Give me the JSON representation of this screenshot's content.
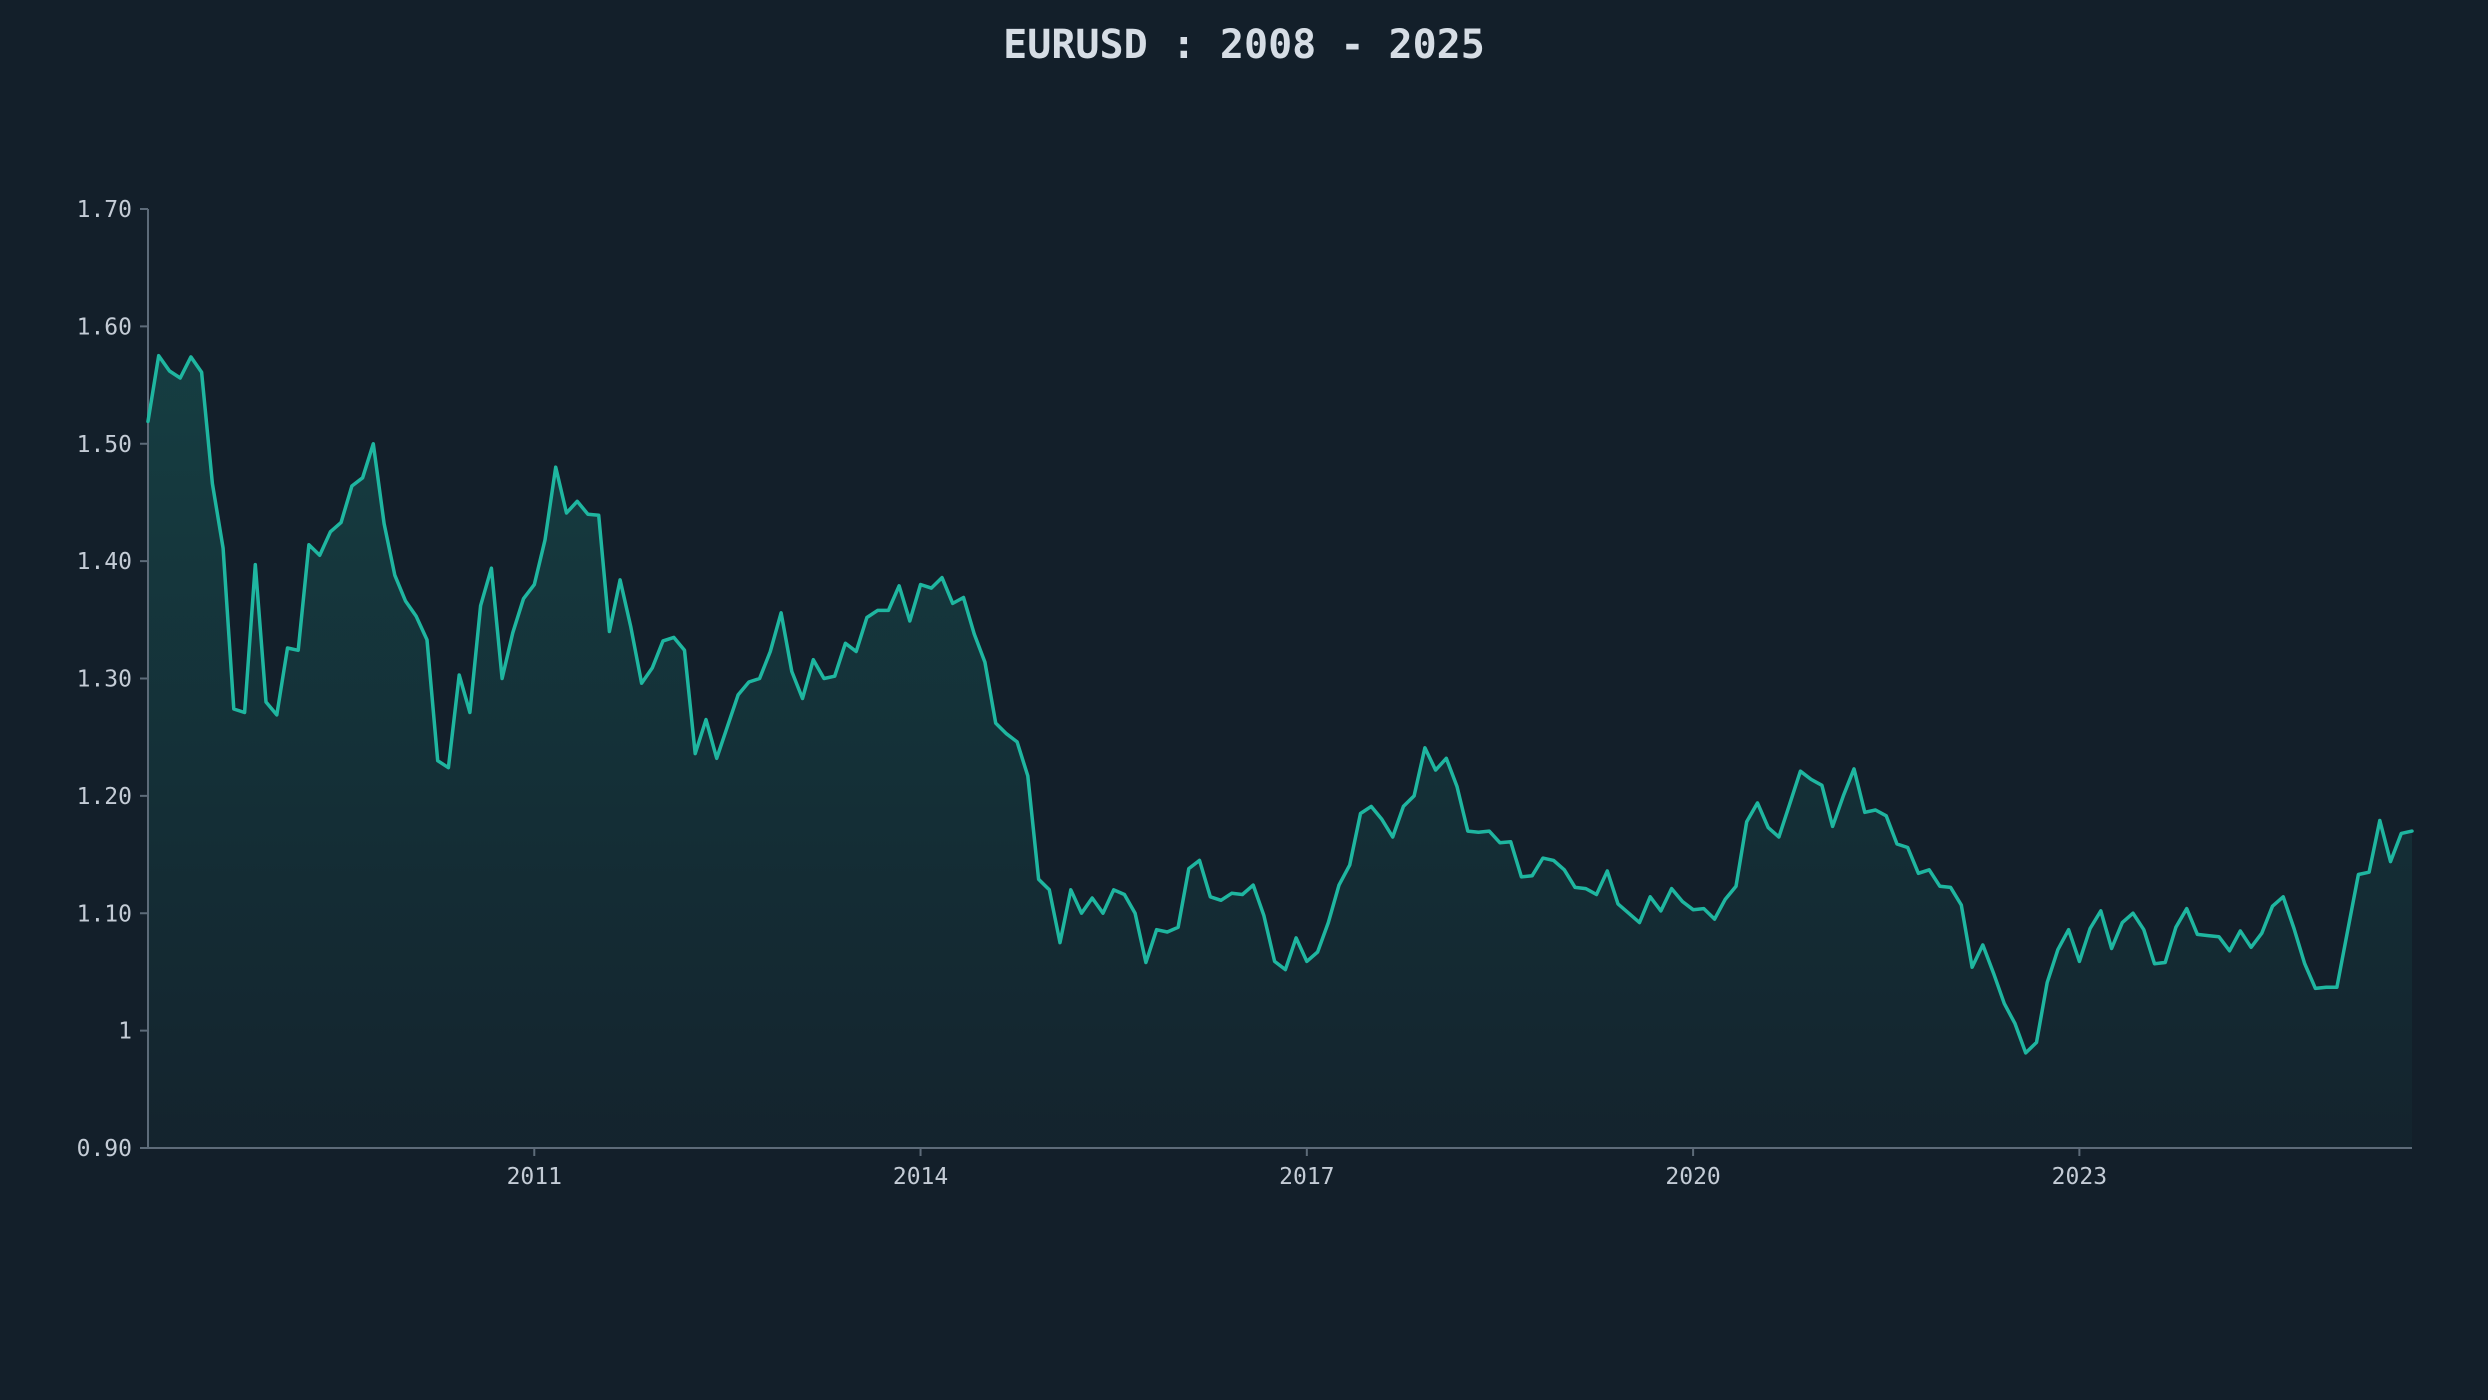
{
  "chart_data": {
    "type": "area",
    "title": "EURUSD : 2008 - 2025",
    "xlabel": "",
    "ylabel": "",
    "x_range": [
      "2008-01",
      "2025-08"
    ],
    "ylim": [
      0.9,
      1.7
    ],
    "y_ticks": [
      {
        "value": 0.9,
        "label": "0.90"
      },
      {
        "value": 1.0,
        "label": "1"
      },
      {
        "value": 1.1,
        "label": "1.10"
      },
      {
        "value": 1.2,
        "label": "1.20"
      },
      {
        "value": 1.3,
        "label": "1.30"
      },
      {
        "value": 1.4,
        "label": "1.40"
      },
      {
        "value": 1.5,
        "label": "1.50"
      },
      {
        "value": 1.6,
        "label": "1.60"
      },
      {
        "value": 1.7,
        "label": "1.70"
      }
    ],
    "x_ticks": [
      {
        "value": "2011-01",
        "label": "2011"
      },
      {
        "value": "2014-01",
        "label": "2014"
      },
      {
        "value": "2017-01",
        "label": "2017"
      },
      {
        "value": "2020-01",
        "label": "2020"
      },
      {
        "value": "2023-01",
        "label": "2023"
      }
    ],
    "grid": false,
    "colors": {
      "line": "#1fb6a0",
      "background": "#131f2a",
      "axis": "#5d6b79",
      "text": "#c4ccd6"
    },
    "series": [
      {
        "x": [
          "2008-01",
          "2008-02",
          "2008-03",
          "2008-04",
          "2008-05",
          "2008-06",
          "2008-07",
          "2008-08",
          "2008-09",
          "2008-10",
          "2008-11",
          "2008-12",
          "2009-01",
          "2009-02",
          "2009-03",
          "2009-04",
          "2009-05",
          "2009-06",
          "2009-07",
          "2009-08",
          "2009-09",
          "2009-10",
          "2009-11",
          "2009-12",
          "2010-01",
          "2010-02",
          "2010-03",
          "2010-04",
          "2010-05",
          "2010-06",
          "2010-07",
          "2010-08",
          "2010-09",
          "2010-10",
          "2010-11",
          "2010-12",
          "2011-01",
          "2011-02",
          "2011-03",
          "2011-04",
          "2011-05",
          "2011-06",
          "2011-07",
          "2011-08",
          "2011-09",
          "2011-10",
          "2011-11",
          "2011-12",
          "2012-01",
          "2012-02",
          "2012-03",
          "2012-04",
          "2012-05",
          "2012-06",
          "2012-07",
          "2012-08",
          "2012-09",
          "2012-10",
          "2012-11",
          "2012-12",
          "2013-01",
          "2013-02",
          "2013-03",
          "2013-04",
          "2013-05",
          "2013-06",
          "2013-07",
          "2013-08",
          "2013-09",
          "2013-10",
          "2013-11",
          "2013-12",
          "2014-01",
          "2014-02",
          "2014-03",
          "2014-04",
          "2014-05",
          "2014-06",
          "2014-07",
          "2014-08",
          "2014-09",
          "2014-10",
          "2014-11",
          "2014-12",
          "2015-01",
          "2015-02",
          "2015-03",
          "2015-04",
          "2015-05",
          "2015-06",
          "2015-07",
          "2015-08",
          "2015-09",
          "2015-10",
          "2015-11",
          "2015-12",
          "2016-01",
          "2016-02",
          "2016-03",
          "2016-04",
          "2016-05",
          "2016-06",
          "2016-07",
          "2016-08",
          "2016-09",
          "2016-10",
          "2016-11",
          "2016-12",
          "2017-01",
          "2017-02",
          "2017-03",
          "2017-04",
          "2017-05",
          "2017-06",
          "2017-07",
          "2017-08",
          "2017-09",
          "2017-10",
          "2017-11",
          "2017-12",
          "2018-01",
          "2018-02",
          "2018-03",
          "2018-04",
          "2018-05",
          "2018-06",
          "2018-07",
          "2018-08",
          "2018-09",
          "2018-10",
          "2018-11",
          "2018-12",
          "2019-01",
          "2019-02",
          "2019-03",
          "2019-04",
          "2019-05",
          "2019-06",
          "2019-07",
          "2019-08",
          "2019-09",
          "2019-10",
          "2019-11",
          "2019-12",
          "2020-01",
          "2020-02",
          "2020-03",
          "2020-04",
          "2020-05",
          "2020-06",
          "2020-07",
          "2020-08",
          "2020-09",
          "2020-10",
          "2020-11",
          "2020-12",
          "2021-01",
          "2021-02",
          "2021-03",
          "2021-04",
          "2021-05",
          "2021-06",
          "2021-07",
          "2021-08",
          "2021-09",
          "2021-10",
          "2021-11",
          "2021-12",
          "2022-01",
          "2022-02",
          "2022-03",
          "2022-04",
          "2022-05",
          "2022-06",
          "2022-07",
          "2022-08",
          "2022-09",
          "2022-10",
          "2022-11",
          "2022-12",
          "2023-01",
          "2023-02",
          "2023-03",
          "2023-04",
          "2023-05",
          "2023-06",
          "2023-07",
          "2023-08",
          "2023-09",
          "2023-10",
          "2023-11",
          "2023-12",
          "2024-01",
          "2024-02",
          "2024-03",
          "2024-04",
          "2024-05",
          "2024-06",
          "2024-07",
          "2024-08",
          "2024-09",
          "2024-10",
          "2024-11",
          "2024-12",
          "2025-01",
          "2025-02",
          "2025-03",
          "2025-04",
          "2025-05",
          "2025-06",
          "2025-07",
          "2025-08"
        ],
        "values": [
          1.519,
          1.575,
          1.562,
          1.556,
          1.574,
          1.561,
          1.466,
          1.411,
          1.274,
          1.271,
          1.397,
          1.28,
          1.269,
          1.326,
          1.324,
          1.414,
          1.405,
          1.425,
          1.433,
          1.464,
          1.471,
          1.5,
          1.432,
          1.388,
          1.366,
          1.353,
          1.333,
          1.23,
          1.224,
          1.303,
          1.271,
          1.362,
          1.394,
          1.3,
          1.339,
          1.368,
          1.38,
          1.418,
          1.48,
          1.441,
          1.451,
          1.44,
          1.439,
          1.34,
          1.384,
          1.344,
          1.296,
          1.309,
          1.332,
          1.335,
          1.324,
          1.236,
          1.265,
          1.232,
          1.259,
          1.286,
          1.297,
          1.3,
          1.323,
          1.356,
          1.306,
          1.283,
          1.316,
          1.3,
          1.302,
          1.33,
          1.323,
          1.352,
          1.358,
          1.358,
          1.379,
          1.349,
          1.38,
          1.377,
          1.386,
          1.364,
          1.369,
          1.338,
          1.314,
          1.262,
          1.253,
          1.246,
          1.217,
          1.129,
          1.12,
          1.075,
          1.12,
          1.1,
          1.113,
          1.1,
          1.12,
          1.116,
          1.1,
          1.058,
          1.086,
          1.084,
          1.088,
          1.138,
          1.145,
          1.114,
          1.111,
          1.117,
          1.116,
          1.124,
          1.098,
          1.059,
          1.052,
          1.079,
          1.059,
          1.067,
          1.092,
          1.124,
          1.141,
          1.185,
          1.191,
          1.18,
          1.165,
          1.191,
          1.2,
          1.241,
          1.222,
          1.232,
          1.208,
          1.17,
          1.169,
          1.17,
          1.16,
          1.161,
          1.131,
          1.132,
          1.147,
          1.145,
          1.137,
          1.122,
          1.121,
          1.116,
          1.136,
          1.108,
          1.1,
          1.092,
          1.114,
          1.102,
          1.121,
          1.11,
          1.103,
          1.104,
          1.095,
          1.112,
          1.123,
          1.178,
          1.194,
          1.173,
          1.165,
          1.193,
          1.221,
          1.214,
          1.209,
          1.174,
          1.2,
          1.223,
          1.186,
          1.188,
          1.183,
          1.159,
          1.156,
          1.134,
          1.137,
          1.123,
          1.122,
          1.107,
          1.054,
          1.073,
          1.049,
          1.023,
          1.006,
          0.981,
          0.99,
          1.041,
          1.069,
          1.086,
          1.059,
          1.087,
          1.102,
          1.07,
          1.092,
          1.1,
          1.086,
          1.057,
          1.058,
          1.088,
          1.104,
          1.082,
          1.081,
          1.08,
          1.068,
          1.085,
          1.071,
          1.083,
          1.106,
          1.114,
          1.087,
          1.057,
          1.036,
          1.037,
          1.037,
          1.085,
          1.133,
          1.135,
          1.179,
          1.144,
          1.168,
          1.17
        ]
      }
    ]
  }
}
